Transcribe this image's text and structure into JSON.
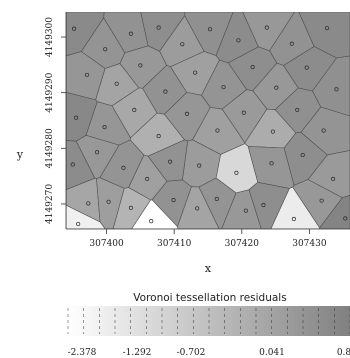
{
  "chart_data": {
    "type": "heatmap",
    "subtype": "voronoi-tessellation",
    "xlabel": "x",
    "ylabel": "y",
    "x_ticks": [
      {
        "value": 307400,
        "label": "307400"
      },
      {
        "value": 307410,
        "label": "307410"
      },
      {
        "value": 307420,
        "label": "307420"
      },
      {
        "value": 307430,
        "label": "307430"
      }
    ],
    "y_ticks": [
      {
        "value": 4149270,
        "label": "4149270"
      },
      {
        "value": 4149280,
        "label": "4149280"
      },
      {
        "value": 4149290,
        "label": "4149290"
      },
      {
        "value": 4149300,
        "label": "4149300"
      }
    ],
    "xlim": [
      307394,
      307436
    ],
    "ylim": [
      4149265.5,
      4149304.5
    ],
    "grid": false,
    "legend": {
      "title": "Voronoi tessellation residuals",
      "position": "bottom",
      "break_labels": [
        "-2.378",
        "-1.292",
        "-0.702",
        "0.041",
        "0.8"
      ],
      "break_values": [
        -2.378,
        -1.292,
        -0.702,
        0.041,
        0.8
      ],
      "color_low": "#ffffff",
      "color_high": "#808080"
    },
    "points": [
      {
        "x": 307395.2,
        "y": 4149301.5,
        "value": 0.55
      },
      {
        "x": 307399.8,
        "y": 4149297.8,
        "value": 0.3
      },
      {
        "x": 307403.6,
        "y": 4149300.6,
        "value": 0.35
      },
      {
        "x": 307407.7,
        "y": 4149301.7,
        "value": 0.45
      },
      {
        "x": 307411.2,
        "y": 4149298.7,
        "value": 0.1
      },
      {
        "x": 307415.3,
        "y": 4149301.4,
        "value": 0.4
      },
      {
        "x": 307419.5,
        "y": 4149299.4,
        "value": 0.5
      },
      {
        "x": 307423.7,
        "y": 4149301.7,
        "value": 0.2
      },
      {
        "x": 307427.4,
        "y": 4149298.8,
        "value": 0.35
      },
      {
        "x": 307432.6,
        "y": 4149301.6,
        "value": 0.55
      },
      {
        "x": 307397.1,
        "y": 4149293.2,
        "value": 0.25
      },
      {
        "x": 307401.5,
        "y": 4149291.6,
        "value": -0.1
      },
      {
        "x": 307405.0,
        "y": 4149294.9,
        "value": 0.2
      },
      {
        "x": 307408.7,
        "y": 4149290.2,
        "value": 0.35
      },
      {
        "x": 307413.1,
        "y": 4149293.6,
        "value": 0.0
      },
      {
        "x": 307417.3,
        "y": 4149291.0,
        "value": 0.3
      },
      {
        "x": 307421.6,
        "y": 4149294.6,
        "value": 0.45
      },
      {
        "x": 307425.1,
        "y": 4149290.9,
        "value": 0.2
      },
      {
        "x": 307429.6,
        "y": 4149294.5,
        "value": 0.5
      },
      {
        "x": 307434.0,
        "y": 4149290.6,
        "value": 0.4
      },
      {
        "x": 307395.5,
        "y": 4149285.5,
        "value": 0.6
      },
      {
        "x": 307399.7,
        "y": 4149283.8,
        "value": 0.25
      },
      {
        "x": 307404.1,
        "y": 4149286.9,
        "value": -0.2
      },
      {
        "x": 307407.7,
        "y": 4149282.2,
        "value": -0.4
      },
      {
        "x": 307411.9,
        "y": 4149286.2,
        "value": 0.25
      },
      {
        "x": 307416.4,
        "y": 4149283.2,
        "value": 0.0
      },
      {
        "x": 307420.3,
        "y": 4149286.4,
        "value": 0.15
      },
      {
        "x": 307424.6,
        "y": 4149283.0,
        "value": -0.3
      },
      {
        "x": 307428.2,
        "y": 4149286.9,
        "value": 0.4
      },
      {
        "x": 307432.1,
        "y": 4149283.2,
        "value": 0.3
      },
      {
        "x": 307395.0,
        "y": 4149277.1,
        "value": 0.5
      },
      {
        "x": 307398.6,
        "y": 4149279.3,
        "value": 0.2
      },
      {
        "x": 307402.5,
        "y": 4149276.5,
        "value": 0.3
      },
      {
        "x": 307406.0,
        "y": 4149274.5,
        "value": 0.0
      },
      {
        "x": 307409.4,
        "y": 4149277.6,
        "value": 0.35
      },
      {
        "x": 307413.7,
        "y": 4149276.9,
        "value": 0.1
      },
      {
        "x": 307419.2,
        "y": 4149275.6,
        "value": -1.4
      },
      {
        "x": 307424.4,
        "y": 4149277.3,
        "value": 0.25
      },
      {
        "x": 307429.0,
        "y": 4149278.8,
        "value": 0.45
      },
      {
        "x": 307433.5,
        "y": 4149274.5,
        "value": 0.15
      },
      {
        "x": 307397.3,
        "y": 4149270.1,
        "value": -0.15
      },
      {
        "x": 307400.3,
        "y": 4149270.4,
        "value": 0.05
      },
      {
        "x": 307403.6,
        "y": 4149269.3,
        "value": -0.5
      },
      {
        "x": 307406.6,
        "y": 4149266.9,
        "value": -2.378
      },
      {
        "x": 307409.9,
        "y": 4149270.7,
        "value": 0.35
      },
      {
        "x": 307413.4,
        "y": 4149269.2,
        "value": -0.1
      },
      {
        "x": 307416.3,
        "y": 4149270.9,
        "value": 0.3
      },
      {
        "x": 307420.6,
        "y": 4149268.8,
        "value": 0.2
      },
      {
        "x": 307423.2,
        "y": 4149269.8,
        "value": 0.45
      },
      {
        "x": 307427.7,
        "y": 4149267.3,
        "value": -1.9
      },
      {
        "x": 307431.8,
        "y": 4149270.6,
        "value": 0.2
      },
      {
        "x": 307435.3,
        "y": 4149267.4,
        "value": 0.7
      },
      {
        "x": 307395.8,
        "y": 4149266.4,
        "value": -2.0
      }
    ]
  }
}
